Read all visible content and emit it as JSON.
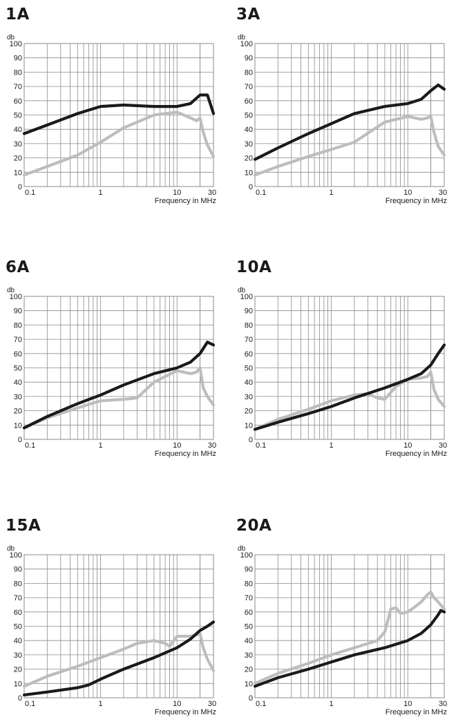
{
  "colors": {
    "dark_series": "#1a1a1a",
    "light_series": "#bdbdbd",
    "grid": "#8a8a8a"
  },
  "chart_data": [
    {
      "type": "line",
      "title": "1A",
      "ylabel": "db",
      "xlabel": "Frequency in MHz",
      "xscale": "log",
      "xlim": [
        0.1,
        30
      ],
      "ylim": [
        0,
        100
      ],
      "xticks": [
        0.1,
        1,
        10,
        30
      ],
      "xtick_labels": [
        "0.1",
        "1",
        "10",
        "30"
      ],
      "yticks": [
        0,
        10,
        20,
        30,
        40,
        50,
        60,
        70,
        80,
        90,
        100
      ],
      "grid": true,
      "series": [
        {
          "color": "#1a1a1a",
          "x": [
            0.1,
            0.2,
            0.5,
            1,
            2,
            5,
            10,
            15,
            20,
            25,
            30
          ],
          "y": [
            37,
            43,
            51,
            56,
            57,
            56,
            56,
            58,
            64,
            64,
            51
          ]
        },
        {
          "color": "#bdbdbd",
          "x": [
            0.1,
            0.2,
            0.5,
            1,
            2,
            5,
            10,
            15,
            18,
            20,
            22,
            25,
            30
          ],
          "y": [
            8,
            14,
            22,
            31,
            41,
            50,
            52,
            48,
            46,
            48,
            38,
            29,
            21
          ]
        }
      ]
    },
    {
      "type": "line",
      "title": "3A",
      "ylabel": "db",
      "xlabel": "Frequency in MHz",
      "xscale": "log",
      "xlim": [
        0.1,
        30
      ],
      "ylim": [
        0,
        100
      ],
      "xticks": [
        0.1,
        1,
        10,
        30
      ],
      "xtick_labels": [
        "0.1",
        "1",
        "10",
        "30"
      ],
      "yticks": [
        0,
        10,
        20,
        30,
        40,
        50,
        60,
        70,
        80,
        90,
        100
      ],
      "grid": true,
      "series": [
        {
          "color": "#1a1a1a",
          "x": [
            0.1,
            0.2,
            0.5,
            1,
            2,
            5,
            10,
            15,
            20,
            25,
            30
          ],
          "y": [
            19,
            27,
            37,
            44,
            51,
            56,
            58,
            61,
            67,
            71,
            68
          ]
        },
        {
          "color": "#bdbdbd",
          "x": [
            0.1,
            0.2,
            0.5,
            1,
            2,
            5,
            10,
            15,
            18,
            20,
            22,
            25,
            30
          ],
          "y": [
            8,
            14,
            21,
            26,
            31,
            45,
            49,
            47,
            48,
            49,
            38,
            28,
            22
          ]
        }
      ]
    },
    {
      "type": "line",
      "title": "6A",
      "ylabel": "db",
      "xlabel": "Frequency in MHz",
      "xscale": "log",
      "xlim": [
        0.1,
        30
      ],
      "ylim": [
        0,
        100
      ],
      "xticks": [
        0.1,
        1,
        10,
        30
      ],
      "xtick_labels": [
        "0.1",
        "1",
        "10",
        "30"
      ],
      "yticks": [
        0,
        10,
        20,
        30,
        40,
        50,
        60,
        70,
        80,
        90,
        100
      ],
      "grid": true,
      "series": [
        {
          "color": "#1a1a1a",
          "x": [
            0.1,
            0.2,
            0.5,
            1,
            2,
            5,
            10,
            15,
            20,
            25,
            30
          ],
          "y": [
            8,
            16,
            25,
            31,
            38,
            46,
            50,
            54,
            60,
            68,
            66
          ]
        },
        {
          "color": "#bdbdbd",
          "x": [
            0.1,
            0.2,
            0.5,
            1,
            2,
            3,
            5,
            10,
            15,
            18,
            20,
            22,
            25,
            30
          ],
          "y": [
            8,
            15,
            22,
            27,
            28,
            29,
            40,
            48,
            46,
            47,
            50,
            36,
            30,
            24
          ]
        }
      ]
    },
    {
      "type": "line",
      "title": "10A",
      "ylabel": "db",
      "xlabel": "Frequency in MHz",
      "xscale": "log",
      "xlim": [
        0.1,
        30
      ],
      "ylim": [
        0,
        100
      ],
      "xticks": [
        0.1,
        1,
        10,
        30
      ],
      "xtick_labels": [
        "0.1",
        "1",
        "10",
        "30"
      ],
      "yticks": [
        0,
        10,
        20,
        30,
        40,
        50,
        60,
        70,
        80,
        90,
        100
      ],
      "grid": true,
      "series": [
        {
          "color": "#1a1a1a",
          "x": [
            0.1,
            0.2,
            0.5,
            1,
            2,
            5,
            10,
            15,
            20,
            25,
            30
          ],
          "y": [
            7,
            12,
            18,
            23,
            29,
            36,
            42,
            46,
            52,
            60,
            66
          ]
        },
        {
          "color": "#bdbdbd",
          "x": [
            0.1,
            0.2,
            0.5,
            1,
            2,
            3,
            4,
            5,
            7,
            10,
            15,
            18,
            20,
            22,
            25,
            30
          ],
          "y": [
            7,
            14,
            21,
            27,
            31,
            32,
            29,
            28,
            37,
            42,
            43,
            44,
            47,
            35,
            28,
            23
          ]
        }
      ]
    },
    {
      "type": "line",
      "title": "15A",
      "ylabel": "db",
      "xlabel": "Frequency in MHz",
      "xscale": "log",
      "xlim": [
        0.1,
        30
      ],
      "ylim": [
        0,
        100
      ],
      "xticks": [
        0.1,
        1,
        10,
        30
      ],
      "xtick_labels": [
        "0.1",
        "1",
        "10",
        "30"
      ],
      "yticks": [
        0,
        10,
        20,
        30,
        40,
        50,
        60,
        70,
        80,
        90,
        100
      ],
      "grid": true,
      "series": [
        {
          "color": "#1a1a1a",
          "x": [
            0.1,
            0.2,
            0.5,
            0.7,
            1,
            2,
            5,
            10,
            15,
            20,
            25,
            30
          ],
          "y": [
            2,
            4,
            7,
            9,
            13,
            20,
            28,
            35,
            41,
            47,
            50,
            53
          ]
        },
        {
          "color": "#bdbdbd",
          "x": [
            0.1,
            0.2,
            0.5,
            1,
            2,
            3,
            5,
            7,
            8,
            10,
            15,
            18,
            20,
            22,
            25,
            30
          ],
          "y": [
            8,
            15,
            22,
            28,
            34,
            38,
            40,
            38,
            36,
            43,
            43,
            44,
            45,
            35,
            27,
            19
          ]
        }
      ]
    },
    {
      "type": "line",
      "title": "20A",
      "ylabel": "db",
      "xlabel": "Frequency in MHz",
      "xscale": "log",
      "xlim": [
        0.1,
        30
      ],
      "ylim": [
        0,
        100
      ],
      "xticks": [
        0.1,
        1,
        10,
        30
      ],
      "xtick_labels": [
        "0.1",
        "1",
        "10",
        "30"
      ],
      "yticks": [
        0,
        10,
        20,
        30,
        40,
        50,
        60,
        70,
        80,
        90,
        100
      ],
      "grid": true,
      "series": [
        {
          "color": "#1a1a1a",
          "x": [
            0.1,
            0.2,
            0.5,
            1,
            2,
            5,
            10,
            15,
            20,
            25,
            27,
            30
          ],
          "y": [
            8,
            14,
            20,
            25,
            30,
            35,
            40,
            45,
            51,
            58,
            61,
            60
          ]
        },
        {
          "color": "#bdbdbd",
          "x": [
            0.1,
            0.2,
            0.5,
            1,
            2,
            4,
            5,
            6,
            7,
            8,
            10,
            12,
            15,
            18,
            20,
            22,
            25,
            30
          ],
          "y": [
            10,
            17,
            24,
            30,
            35,
            40,
            46,
            62,
            63,
            59,
            60,
            63,
            67,
            72,
            74,
            70,
            67,
            62
          ]
        }
      ]
    }
  ]
}
